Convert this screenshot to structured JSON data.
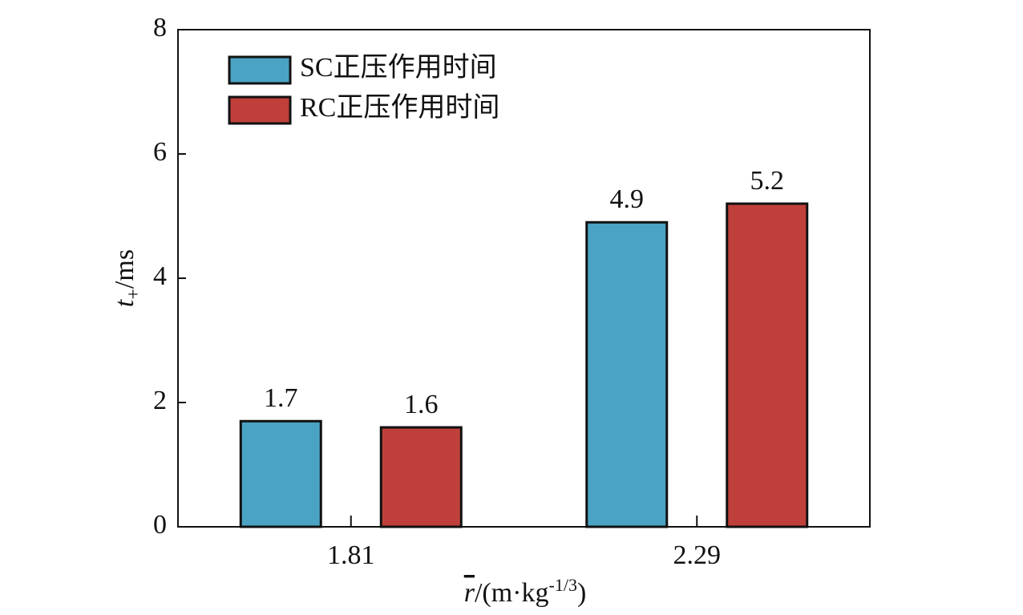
{
  "chart_data": {
    "type": "bar",
    "categories": [
      "1.81",
      "2.29"
    ],
    "series": [
      {
        "name": "SC正压作用时间",
        "color": "#4aa3c2",
        "values": [
          1.7,
          4.9
        ]
      },
      {
        "name": "RC正压作用时间",
        "color": "#bf403a",
        "values": [
          1.6,
          5.2
        ]
      }
    ],
    "ylim": [
      0,
      8
    ],
    "yticks": [
      0,
      2,
      4,
      6,
      8
    ],
    "ylabel": [
      "t",
      "+",
      "/ms"
    ],
    "xlabel": [
      "r",
      "/(m·kg",
      "-1/3",
      ")"
    ],
    "legend": "upper left"
  }
}
